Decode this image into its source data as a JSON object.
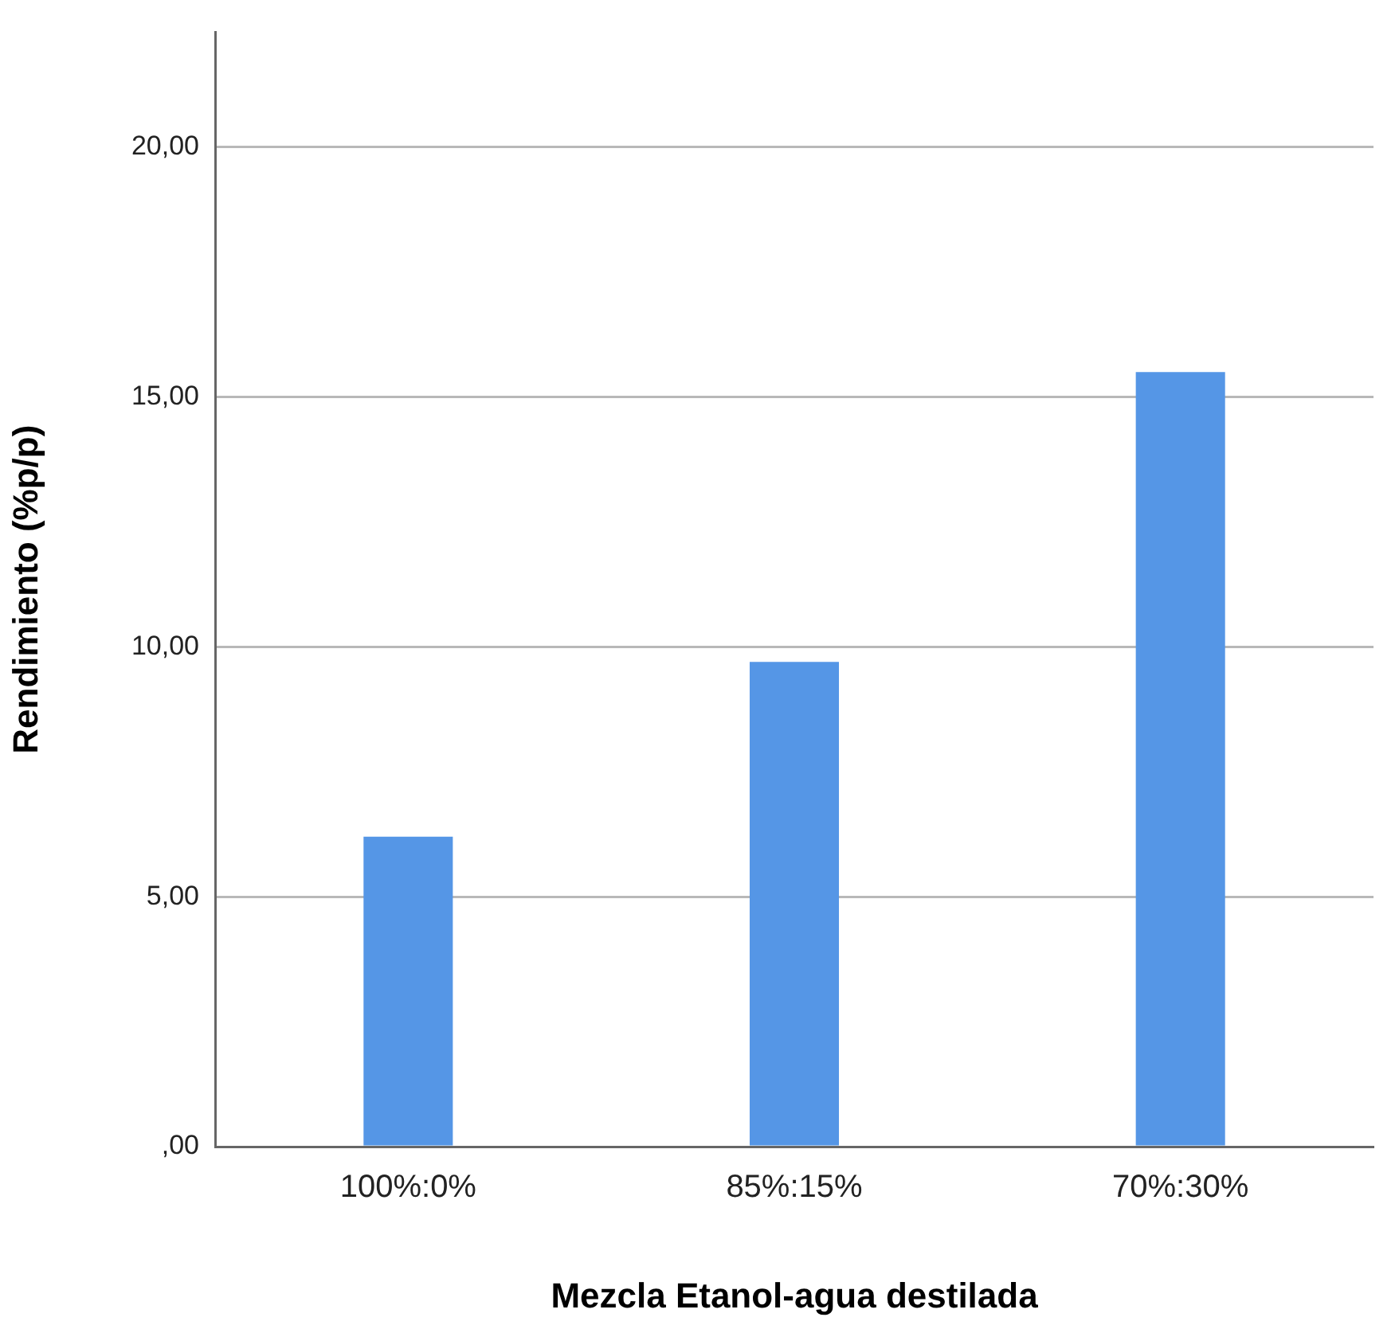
{
  "chart_data": {
    "type": "bar",
    "xlabel": "Mezcla Etanol-agua destilada",
    "ylabel": "Rendimiento (%p/p)",
    "categories": [
      "100%:0%",
      "85%:15%",
      "70%:30%"
    ],
    "values": [
      6.2,
      9.7,
      15.5
    ],
    "color": "#5596e6",
    "ylim": [
      0,
      22.3
    ],
    "yticks": [
      {
        "value": 0,
        "label": ",00"
      },
      {
        "value": 5,
        "label": "5,00"
      },
      {
        "value": 10,
        "label": "10,00"
      },
      {
        "value": 15,
        "label": "15,00"
      },
      {
        "value": 20,
        "label": "20,00"
      }
    ],
    "grid": "y",
    "legend": false
  }
}
